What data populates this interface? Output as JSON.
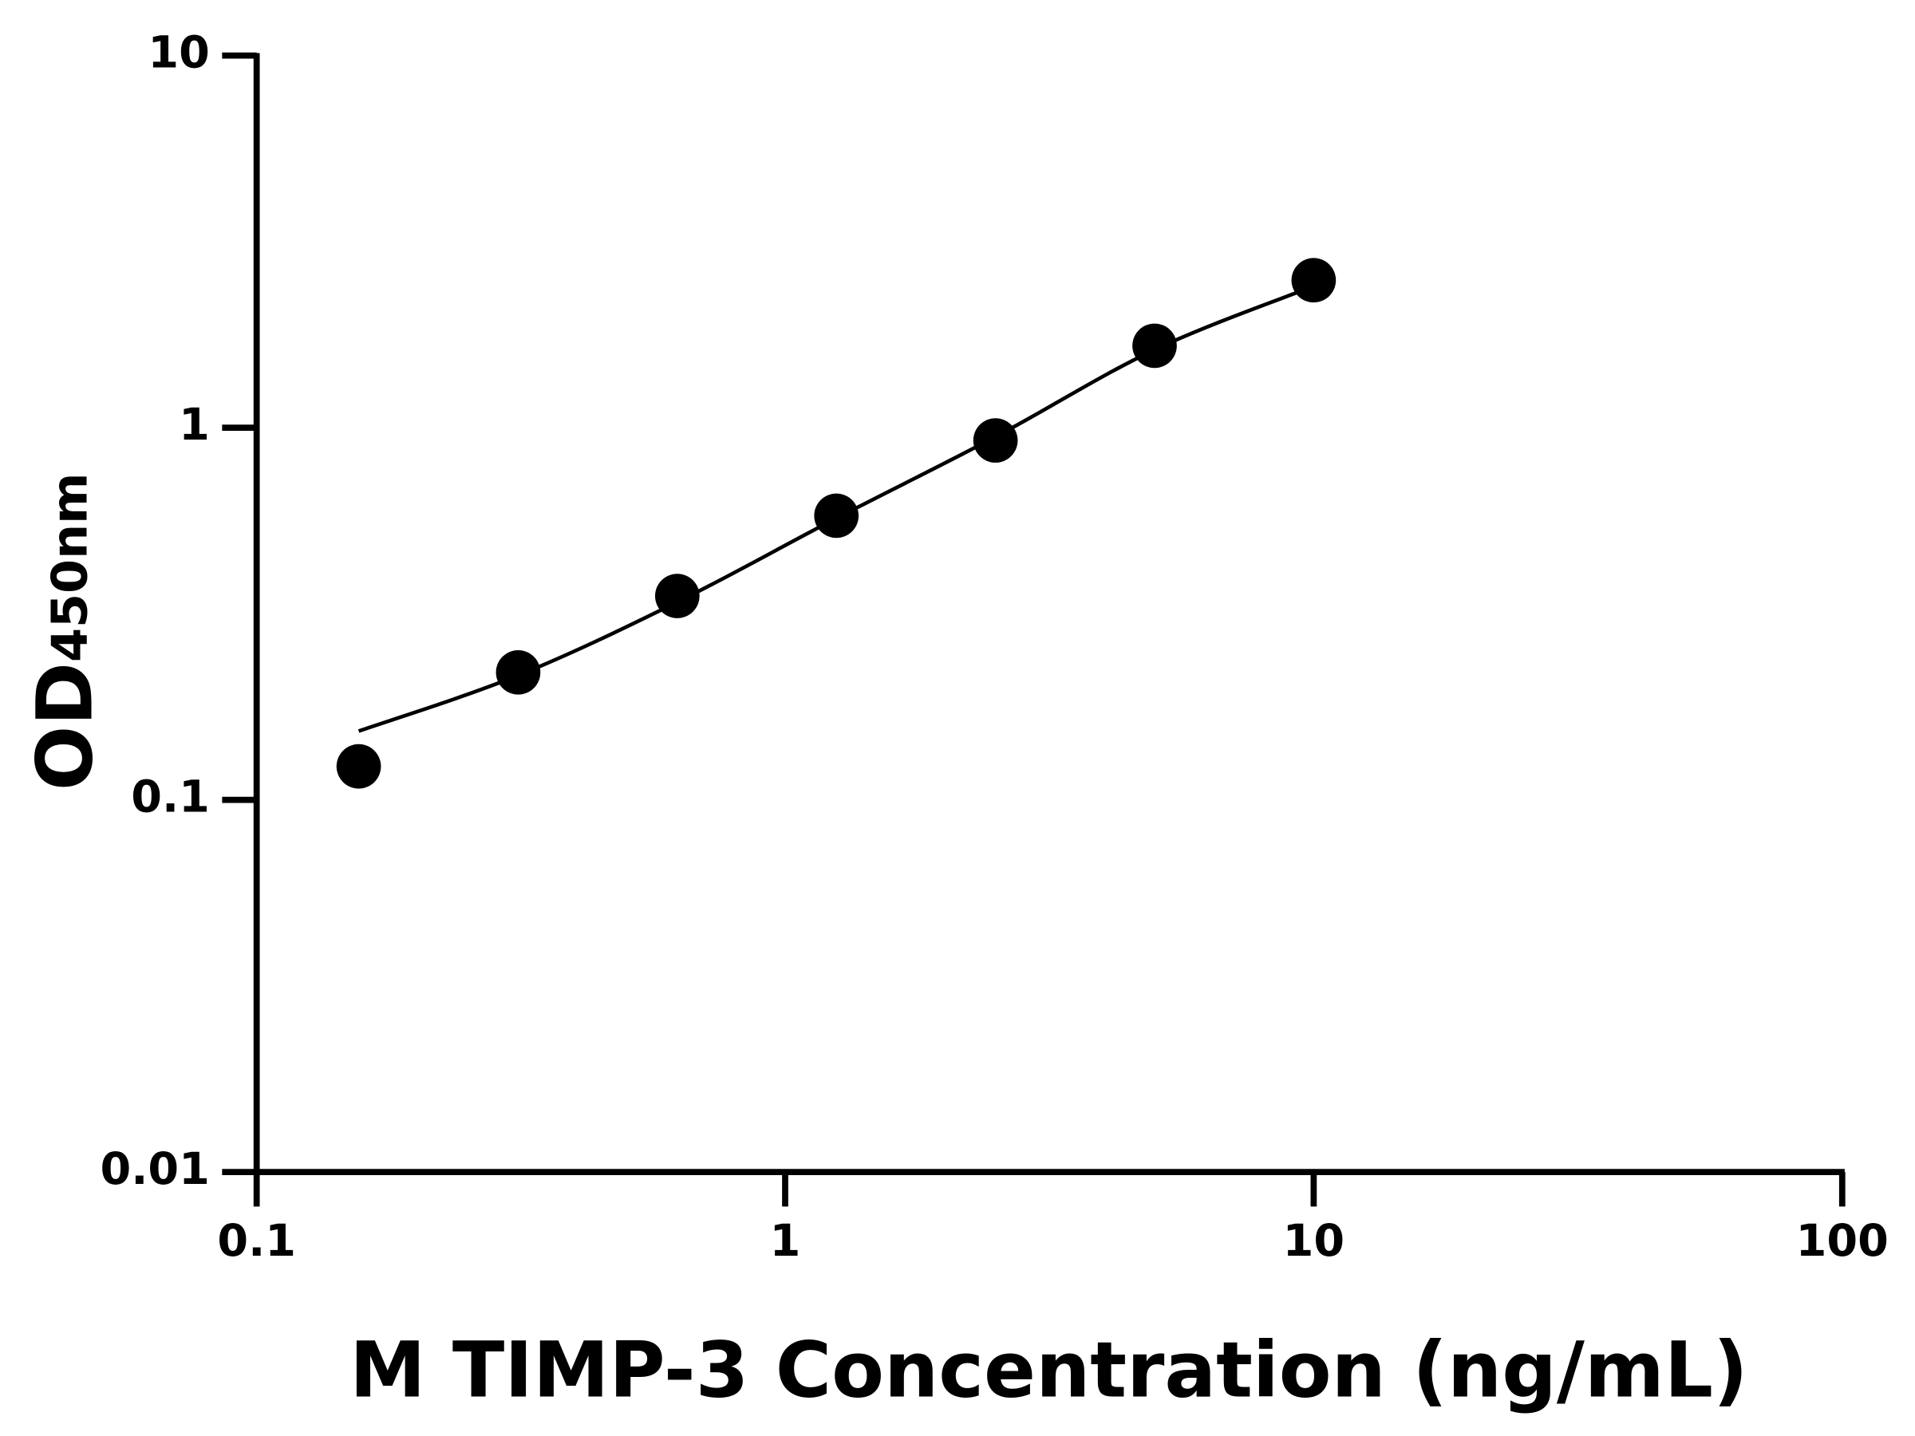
{
  "chart_data": {
    "type": "scatter",
    "x_label": "M TIMP-3 Concentration (ng/mL)",
    "y_label": "OD",
    "y_label_sub": "450nm",
    "x": [
      0.156,
      0.3125,
      0.625,
      1.25,
      2.5,
      5,
      10
    ],
    "values": [
      0.123,
      0.22,
      0.353,
      0.58,
      0.924,
      1.66,
      2.49
    ],
    "color": "#000000",
    "curve": {
      "x": [
        0.156,
        0.3125,
        0.625,
        1.25,
        2.5,
        5,
        10
      ],
      "values": [
        0.153,
        0.216,
        0.34,
        0.571,
        0.945,
        1.62,
        2.4
      ]
    },
    "xlim": [
      0.1,
      100
    ],
    "ylim": [
      0.01,
      10
    ],
    "xticks": [
      0.1,
      1,
      10,
      100
    ],
    "yticks": [
      0.01,
      0.1,
      1,
      10
    ],
    "xscale": "log",
    "yscale": "log",
    "grid": false
  }
}
